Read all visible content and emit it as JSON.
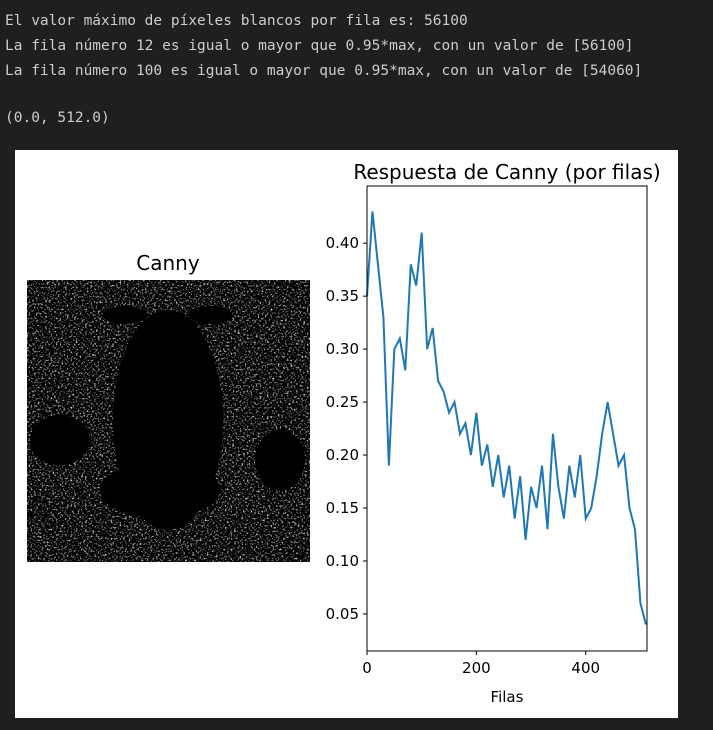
{
  "output": {
    "lines": [
      "El valor máximo de píxeles blancos por fila es: 56100",
      "La fila número 12 es igual o mayor que 0.95*max, con un valor de [56100]",
      "La fila número 100 es igual o mayor que 0.95*max, con un valor de [54060]"
    ],
    "result": "(0.0, 512.0)"
  },
  "image_panel": {
    "title": "Canny"
  },
  "chart_data": {
    "type": "line",
    "title": "Respuesta de Canny (por filas)",
    "x_label": "Filas",
    "x": [
      0,
      10,
      20,
      30,
      40,
      50,
      60,
      70,
      80,
      90,
      100,
      110,
      120,
      130,
      140,
      150,
      160,
      170,
      180,
      190,
      200,
      210,
      220,
      230,
      240,
      250,
      260,
      270,
      280,
      290,
      300,
      310,
      320,
      330,
      340,
      350,
      360,
      370,
      380,
      390,
      400,
      410,
      420,
      430,
      440,
      450,
      460,
      470,
      480,
      490,
      500,
      510
    ],
    "values": [
      0.35,
      0.43,
      0.38,
      0.33,
      0.19,
      0.3,
      0.31,
      0.28,
      0.38,
      0.36,
      0.41,
      0.3,
      0.32,
      0.27,
      0.26,
      0.24,
      0.25,
      0.22,
      0.23,
      0.2,
      0.24,
      0.19,
      0.21,
      0.17,
      0.2,
      0.16,
      0.19,
      0.14,
      0.18,
      0.12,
      0.17,
      0.15,
      0.19,
      0.13,
      0.22,
      0.17,
      0.14,
      0.19,
      0.16,
      0.2,
      0.14,
      0.15,
      0.18,
      0.22,
      0.25,
      0.22,
      0.19,
      0.2,
      0.15,
      0.13,
      0.06,
      0.04
    ],
    "color": "#1f77b4",
    "xlim": [
      0,
      512
    ],
    "ylim": [
      0.015,
      0.454
    ],
    "xticks": [
      0,
      200,
      400
    ],
    "yticks": [
      0.05,
      {
        "value": 0.1,
        "label": "0.10"
      },
      0.15,
      {
        "value": 0.2,
        "label": "0.20"
      },
      0.25,
      {
        "value": 0.3,
        "label": "0.30"
      },
      0.35,
      {
        "value": 0.4,
        "label": "0.40"
      }
    ]
  }
}
